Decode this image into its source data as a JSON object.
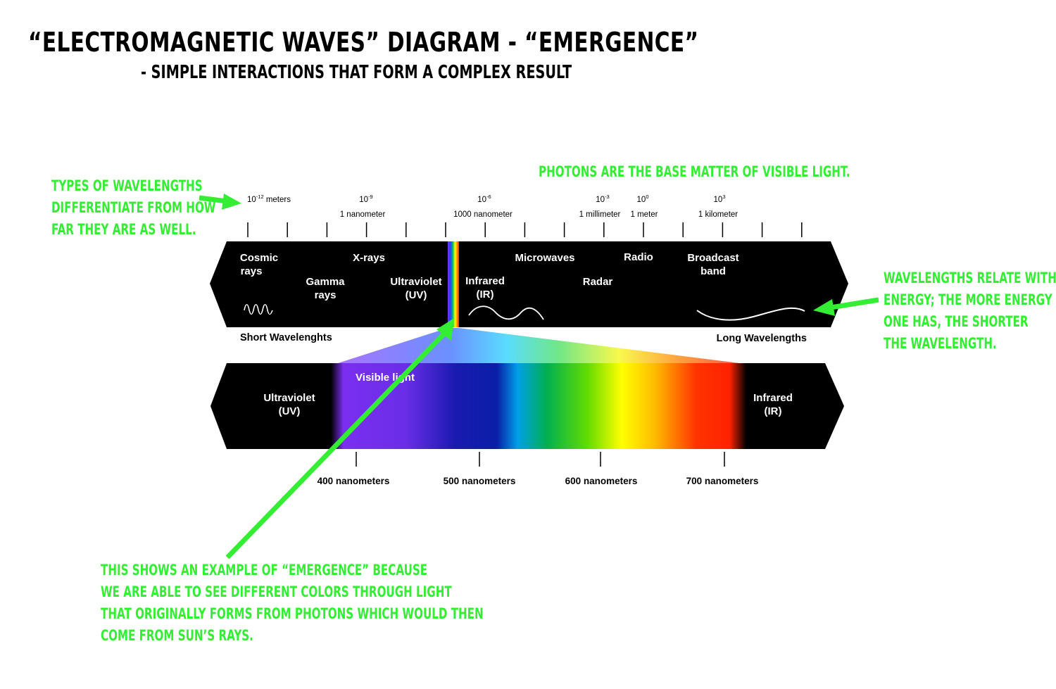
{
  "title": "“ELECTROMAGNETIC WAVES” DIAGRAM - “EMERGENCE”",
  "subtitle": "- SIMPLE INTERACTIONS THAT FORM A COMPLEX RESULT",
  "notes": {
    "photons": "PHOTONS ARE THE BASE MATTER OF VISIBLE LIGHT.",
    "wavelength_types": [
      "TYPES OF WAVELENGTHS",
      "DIFFERENTIATE FROM HOW",
      "FAR THEY ARE AS WELL."
    ],
    "energy": [
      "WAVELENGTHS RELATE WITH",
      "ENERGY; THE MORE ENERGY",
      "ONE HAS, THE SHORTER",
      "THE WAVELENGTH."
    ],
    "emergence": [
      "THIS SHOWS AN EXAMPLE OF “EMERGENCE” BECAUSE",
      "WE ARE ABLE TO SEE DIFFERENT COLORS THROUGH LIGHT",
      "THAT ORIGINALLY FORMS FROM PHOTONS WHICH WOULD THEN",
      "COME FROM SUN’S RAYS."
    ]
  },
  "scale": [
    {
      "base": "10",
      "exp": "-12",
      "unit": " meters",
      "name": ""
    },
    {
      "base": "10",
      "exp": "-9",
      "unit": "",
      "name": "1 nanometer"
    },
    {
      "base": "10",
      "exp": "-6",
      "unit": "",
      "name": "1000 nanometer"
    },
    {
      "base": "10",
      "exp": "-3",
      "unit": "",
      "name": "1 millimeter"
    },
    {
      "base": "10",
      "exp": "0",
      "unit": "",
      "name": "1 meter"
    },
    {
      "base": "10",
      "exp": "3",
      "unit": "",
      "name": "1 kilometer"
    }
  ],
  "spectrum_bands": [
    [
      "Cosmic",
      "rays"
    ],
    [
      "Gamma",
      "rays"
    ],
    [
      "X-rays"
    ],
    [
      "Ultraviolet",
      "(UV)"
    ],
    [
      "Infrared",
      "(IR)"
    ],
    [
      "Microwaves"
    ],
    [
      "Radar"
    ],
    [
      "Radio"
    ],
    [
      "Broadcast",
      "band"
    ]
  ],
  "short_label": "Short Wavelenghts",
  "long_label": "Long Wavelengths",
  "visible": {
    "label": "Visible light",
    "left": [
      "Ultraviolet",
      "(UV)"
    ],
    "right": [
      "Infrared",
      "(IR)"
    ],
    "ticks": [
      "400 nanometers",
      "500 nanometers",
      "600 nanometers",
      "700 nanometers"
    ]
  },
  "colors": {
    "annotation": "#33ee33",
    "band": "#000000",
    "violet": "#7b2ff0",
    "blue": "#0a1fa8",
    "green": "#00b050",
    "yellow": "#ffff00",
    "red": "#ff2200"
  }
}
